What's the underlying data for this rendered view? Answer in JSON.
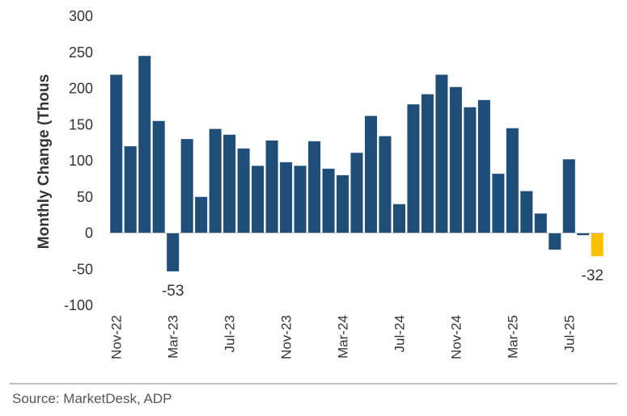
{
  "chart_data": {
    "type": "bar",
    "ylabel": "Monthly Change (Thous",
    "ylim": [
      -100,
      300
    ],
    "yticks": [
      300,
      250,
      200,
      150,
      100,
      50,
      0,
      -50,
      -100
    ],
    "categories": [
      "Nov-22",
      "Dec-22",
      "Jan-23",
      "Feb-23",
      "Mar-23",
      "Apr-23",
      "May-23",
      "Jun-23",
      "Jul-23",
      "Aug-23",
      "Sep-23",
      "Oct-23",
      "Nov-23",
      "Dec-23",
      "Jan-24",
      "Feb-24",
      "Mar-24",
      "Apr-24",
      "May-24",
      "Jun-24",
      "Jul-24",
      "Aug-24",
      "Sep-24",
      "Oct-24",
      "Nov-24",
      "Dec-24",
      "Jan-25",
      "Feb-25",
      "Mar-25",
      "Apr-25",
      "May-25",
      "Jun-25",
      "Jul-25",
      "Aug-25",
      "Sep-25"
    ],
    "values": [
      219,
      120,
      245,
      155,
      -53,
      130,
      50,
      144,
      136,
      117,
      93,
      128,
      98,
      93,
      127,
      89,
      80,
      111,
      162,
      134,
      40,
      178,
      192,
      219,
      202,
      174,
      184,
      82,
      145,
      58,
      27,
      -23,
      102,
      -3,
      -32
    ],
    "xtick_labels": [
      {
        "index": 0,
        "label": "Nov-22"
      },
      {
        "index": 4,
        "label": "Mar-23"
      },
      {
        "index": 8,
        "label": "Jul-23"
      },
      {
        "index": 12,
        "label": "Nov-23"
      },
      {
        "index": 16,
        "label": "Mar-24"
      },
      {
        "index": 20,
        "label": "Jul-24"
      },
      {
        "index": 24,
        "label": "Nov-24"
      },
      {
        "index": 28,
        "label": "Mar-25"
      },
      {
        "index": 32,
        "label": "Jul-25"
      }
    ],
    "annotations": [
      {
        "index": 4,
        "text": "-53"
      },
      {
        "index": 34,
        "text": "-32"
      }
    ],
    "colors": {
      "bar": "#1f4e79",
      "highlight": "#ffc000",
      "axis": "#bfbfbf"
    },
    "highlight_index": 34
  },
  "source": "Source: MarketDesk, ADP"
}
